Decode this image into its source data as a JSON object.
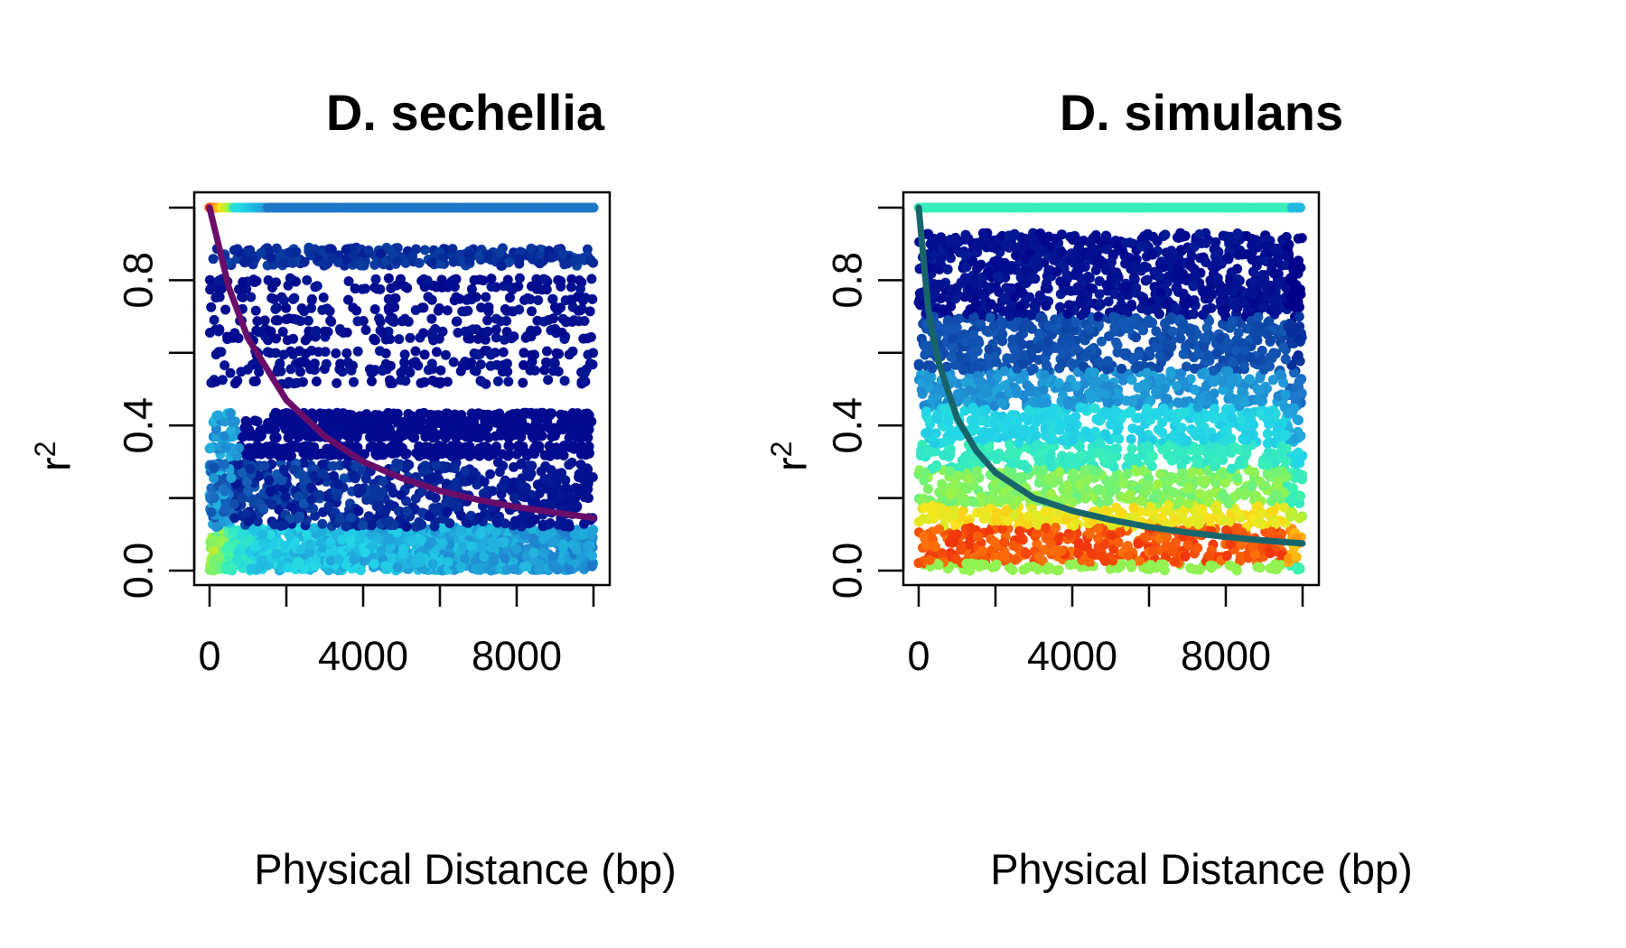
{
  "chart_data": [
    {
      "type": "scatter",
      "title": "D. sechellia",
      "xlabel": "Physical Distance (bp)",
      "ylabel": "r",
      "ylabel_superscript": "2",
      "xlim": [
        0,
        10000
      ],
      "ylim": [
        0,
        1
      ],
      "x_ticks": [
        0,
        2000,
        4000,
        6000,
        8000,
        10000
      ],
      "x_tick_labels": [
        "0",
        "",
        "4000",
        "",
        "8000",
        ""
      ],
      "y_ticks": [
        0,
        0.2,
        0.4,
        0.6,
        0.8,
        1.0
      ],
      "y_tick_labels": [
        "0.0",
        "",
        "0.4",
        "",
        "0.8",
        ""
      ],
      "point_color_scale": "density (dark blue = low, cyan/green/yellow/red = high)",
      "point_bands": [
        {
          "y_range": [
            0.98,
            1.0
          ],
          "x_range": [
            0,
            10000
          ],
          "density": "high near 0, medium elsewhere"
        },
        {
          "y_range": [
            0.82,
            0.9
          ],
          "x_range": [
            0,
            10000
          ],
          "density": "low"
        },
        {
          "y_range": [
            0.5,
            0.82
          ],
          "x_range": [
            0,
            10000
          ],
          "density": "sparse"
        },
        {
          "y_range": [
            0.3,
            0.43
          ],
          "x_range": [
            0,
            10000
          ],
          "density": "low"
        },
        {
          "y_range": [
            0.12,
            0.3
          ],
          "x_range": [
            0,
            10000
          ],
          "density": "low to medium"
        },
        {
          "y_range": [
            0.0,
            0.12
          ],
          "x_range": [
            0,
            10000
          ],
          "density": "high"
        }
      ],
      "fit_curve": {
        "color": "#6a0d6a",
        "points": [
          [
            0,
            1.0
          ],
          [
            500,
            0.78
          ],
          [
            1000,
            0.64
          ],
          [
            2000,
            0.47
          ],
          [
            3000,
            0.37
          ],
          [
            4000,
            0.3
          ],
          [
            5000,
            0.255
          ],
          [
            6000,
            0.22
          ],
          [
            7000,
            0.195
          ],
          [
            8000,
            0.175
          ],
          [
            9000,
            0.16
          ],
          [
            10000,
            0.145
          ]
        ]
      }
    },
    {
      "type": "scatter",
      "title": "D. simulans",
      "xlabel": "Physical Distance (bp)",
      "ylabel": "r",
      "ylabel_superscript": "2",
      "xlim": [
        0,
        10000
      ],
      "ylim": [
        0,
        1
      ],
      "x_ticks": [
        0,
        2000,
        4000,
        6000,
        8000,
        10000
      ],
      "x_tick_labels": [
        "0",
        "",
        "4000",
        "",
        "8000",
        ""
      ],
      "y_ticks": [
        0,
        0.2,
        0.4,
        0.6,
        0.8,
        1.0
      ],
      "y_tick_labels": [
        "0.0",
        "",
        "0.4",
        "",
        "0.8",
        ""
      ],
      "point_color_scale": "density (dark blue = low, cyan/green/yellow/red = high)",
      "point_bands": [
        {
          "y_range": [
            0.98,
            1.0
          ],
          "x_range": [
            0,
            10000
          ],
          "density": "medium"
        },
        {
          "y_range": [
            0.0,
            0.93
          ],
          "x_range": [
            0,
            10000
          ],
          "density": "continuous, highest near 0.03-0.1"
        }
      ],
      "fit_curve": {
        "color": "#17656b",
        "points": [
          [
            0,
            1.0
          ],
          [
            250,
            0.72
          ],
          [
            500,
            0.58
          ],
          [
            1000,
            0.42
          ],
          [
            1500,
            0.33
          ],
          [
            2000,
            0.27
          ],
          [
            3000,
            0.2
          ],
          [
            4000,
            0.165
          ],
          [
            5000,
            0.14
          ],
          [
            6000,
            0.12
          ],
          [
            7000,
            0.105
          ],
          [
            8000,
            0.093
          ],
          [
            9000,
            0.083
          ],
          [
            10000,
            0.075
          ]
        ]
      }
    }
  ]
}
